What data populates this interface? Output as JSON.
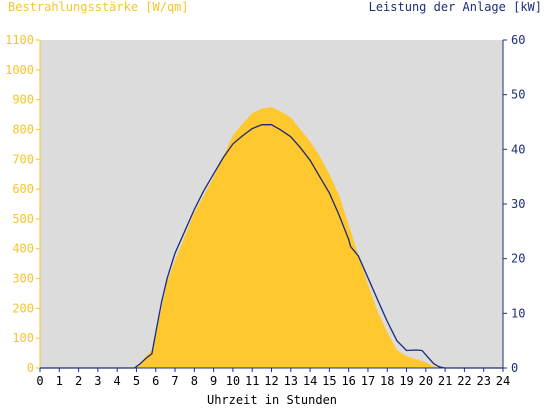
{
  "chart_data": {
    "type": "area",
    "left_axis_title": "Bestrahlungsstärke [W/qm]",
    "right_axis_title": "Leistung der Anlage [kW]",
    "xlabel": "Uhrzeit in Stunden",
    "x_range": [
      0,
      24
    ],
    "left_range": [
      0,
      1100
    ],
    "right_range": [
      0,
      60
    ],
    "x_ticks": [
      "0",
      "1",
      "2",
      "3",
      "4",
      "5",
      "6",
      "7",
      "8",
      "9",
      "10",
      "11",
      "12",
      "13",
      "14",
      "15",
      "16",
      "17",
      "18",
      "19",
      "20",
      "21",
      "22",
      "23",
      "24"
    ],
    "left_ticks": [
      "0",
      "100",
      "200",
      "300",
      "400",
      "500",
      "600",
      "700",
      "800",
      "900",
      "1000",
      "1100"
    ],
    "right_ticks": [
      "0",
      "10",
      "20",
      "30",
      "40",
      "50",
      "60"
    ],
    "colors": {
      "irradiance": "#ffc82e",
      "power": "#1a2a78",
      "plot_bg": "#dcdcdc",
      "left_axis": "#f7c52a",
      "right_axis": "#1c2f7a"
    },
    "grid": false,
    "series": [
      {
        "name": "Bestrahlungsstärke",
        "axis": "left",
        "style": "area",
        "x": [
          0,
          4.9,
          5.2,
          5.5,
          5.8,
          6.0,
          6.3,
          6.6,
          7.0,
          7.5,
          8.0,
          8.5,
          9.0,
          9.5,
          10.0,
          10.5,
          11.0,
          11.5,
          12.0,
          12.5,
          13.0,
          13.5,
          14.0,
          14.5,
          15.0,
          15.5,
          16.0,
          16.5,
          17.0,
          17.5,
          18.0,
          18.5,
          19.0,
          19.5,
          20.0,
          20.3,
          20.6,
          21.0,
          24
        ],
        "y": [
          0,
          0,
          15,
          40,
          60,
          110,
          200,
          290,
          360,
          440,
          520,
          580,
          640,
          710,
          780,
          820,
          855,
          870,
          875,
          860,
          840,
          800,
          760,
          710,
          650,
          580,
          480,
          380,
          280,
          190,
          120,
          60,
          40,
          30,
          20,
          8,
          2,
          0,
          0
        ]
      },
      {
        "name": "Leistung",
        "axis": "right",
        "style": "line",
        "x": [
          0,
          4.9,
          5.2,
          5.5,
          5.8,
          6.0,
          6.3,
          6.6,
          7.0,
          7.5,
          8.0,
          8.5,
          9.0,
          9.5,
          10.0,
          10.5,
          11.0,
          11.5,
          12.0,
          12.5,
          13.0,
          13.5,
          14.0,
          14.5,
          15.0,
          15.5,
          16.0,
          16.1,
          16.5,
          17.0,
          17.5,
          18.0,
          18.5,
          19.0,
          19.5,
          19.8,
          20.1,
          20.4,
          20.7,
          21.0,
          24
        ],
        "y": [
          0,
          0,
          0.8,
          1.8,
          2.6,
          6.5,
          12.0,
          16.5,
          21.0,
          25.0,
          29.0,
          32.5,
          35.5,
          38.5,
          41.0,
          42.5,
          43.8,
          44.5,
          44.5,
          43.5,
          42.3,
          40.3,
          38.0,
          35.0,
          32.0,
          28.0,
          23.5,
          22.2,
          20.5,
          16.5,
          12.5,
          8.5,
          5.0,
          3.2,
          3.3,
          3.2,
          2.0,
          0.8,
          0.2,
          0,
          0
        ]
      }
    ]
  }
}
